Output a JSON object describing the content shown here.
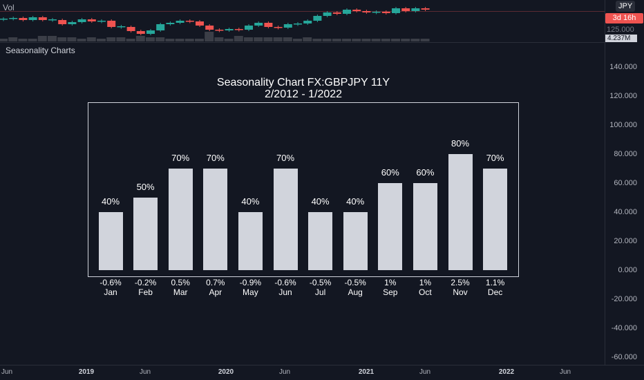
{
  "top_pane": {
    "label": "Vol",
    "currency_tag": "JPY",
    "countdown": "3d 16h",
    "price_level": "125.000",
    "volume_value": "4.237M",
    "candles": [
      [
        5,
        5.5
      ],
      [
        5.5,
        6
      ],
      [
        6,
        4.5
      ],
      [
        4.5,
        6.5
      ],
      [
        6.5,
        4.5
      ],
      [
        4.5,
        5
      ],
      [
        4.5,
        1.5
      ],
      [
        1.5,
        3
      ],
      [
        3,
        5
      ],
      [
        5,
        3.5
      ],
      [
        3.5,
        4
      ],
      [
        4,
        -0.5
      ],
      [
        -0.5,
        0
      ],
      [
        -0.5,
        -3.5
      ],
      [
        -3.5,
        -5.5
      ],
      [
        -5.5,
        -3
      ],
      [
        -3,
        1.5
      ],
      [
        1.5,
        2.5
      ],
      [
        2.5,
        4
      ],
      [
        4,
        3.5
      ],
      [
        3.5,
        0.5
      ],
      [
        0.5,
        -2.5
      ],
      [
        -2.5,
        -3
      ],
      [
        -3,
        -2
      ],
      [
        -2,
        -2.5
      ],
      [
        -2.5,
        0.5
      ],
      [
        0.5,
        2.5
      ],
      [
        2.5,
        -0.5
      ],
      [
        -0.5,
        -1
      ],
      [
        -1,
        1.5
      ],
      [
        1.5,
        2
      ],
      [
        2,
        4
      ],
      [
        4,
        7.5
      ],
      [
        7.5,
        10
      ],
      [
        10,
        9
      ],
      [
        9,
        12
      ],
      [
        12,
        11
      ],
      [
        11,
        10
      ],
      [
        10,
        10.5
      ],
      [
        10.5,
        9.5
      ],
      [
        9.5,
        13
      ],
      [
        13,
        11
      ],
      [
        11,
        13
      ],
      [
        13,
        12
      ]
    ],
    "volumes": [
      2,
      3,
      2,
      2,
      4,
      4,
      3,
      3,
      2,
      3,
      2,
      3,
      3,
      2,
      4,
      3,
      3,
      2,
      2,
      2,
      2,
      7,
      3,
      2,
      4,
      3,
      3,
      3,
      3,
      3,
      2,
      3,
      2,
      2,
      2,
      2,
      2,
      2,
      2,
      2,
      2,
      2,
      2,
      2
    ]
  },
  "indicator_label": "Seasonality Charts",
  "chart_data": {
    "type": "bar",
    "title": "Seasonality Chart FX:GBPJPY 11Y",
    "subtitle": "2/2012 - 1/2022",
    "categories": [
      "Jan",
      "Feb",
      "Mar",
      "Apr",
      "May",
      "Jun",
      "Jul",
      "Aug",
      "Sep",
      "Oct",
      "Nov",
      "Dec"
    ],
    "values": [
      40,
      50,
      70,
      70,
      40,
      70,
      40,
      40,
      60,
      60,
      80,
      70
    ],
    "value_labels": [
      "40%",
      "50%",
      "70%",
      "70%",
      "40%",
      "70%",
      "40%",
      "40%",
      "60%",
      "60%",
      "80%",
      "70%"
    ],
    "avg_change_labels": [
      "-0.6%",
      "-0.2%",
      "0.5%",
      "0.7%",
      "-0.9%",
      "-0.6%",
      "-0.5%",
      "-0.5%",
      "1%",
      "1%",
      "2.5%",
      "1.1%"
    ],
    "ylim": [
      -60,
      140
    ],
    "y_ticks": [
      "140.000",
      "120.000",
      "100.000",
      "80.000",
      "60.000",
      "40.000",
      "20.000",
      "0.000",
      "-20.000",
      "-40.000",
      "-60.000"
    ],
    "x_ticks": [
      "Jun",
      "2019",
      "Jun",
      "2020",
      "Jun",
      "2021",
      "Jun",
      "2022",
      "Jun"
    ]
  },
  "colors": {
    "up": "#26a69a",
    "down": "#ef5350",
    "bar": "#d1d4dc"
  }
}
